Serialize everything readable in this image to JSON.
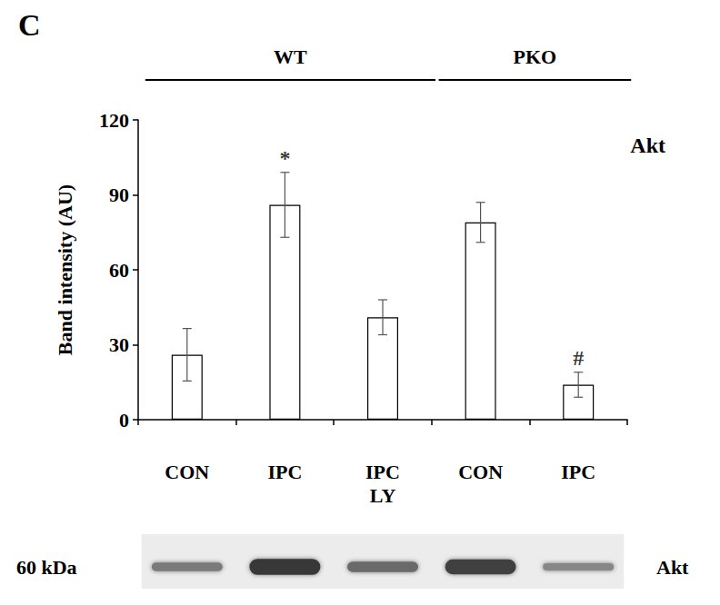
{
  "chart_data": {
    "type": "bar",
    "panel_label": "C",
    "annotation": "Akt",
    "groups": [
      {
        "label": "WT",
        "start": 0,
        "end": 2
      },
      {
        "label": "PKO",
        "start": 3,
        "end": 4
      }
    ],
    "categories": [
      "CON",
      "IPC",
      "IPC LY",
      "CON",
      "IPC"
    ],
    "values": [
      26,
      86,
      41,
      79,
      14
    ],
    "errors": [
      10.5,
      13,
      7,
      8,
      5
    ],
    "significance": [
      {
        "index": 1,
        "text": "*"
      },
      {
        "index": 4,
        "text": "#"
      }
    ],
    "y_label": "Band intensity (AU)",
    "ylim": [
      0,
      120
    ],
    "yticks": [
      0,
      30,
      60,
      90,
      120
    ],
    "color": "#ffffff",
    "grid": false,
    "blot": {
      "size_label": "60 kDa",
      "protein_label": "Akt"
    }
  }
}
